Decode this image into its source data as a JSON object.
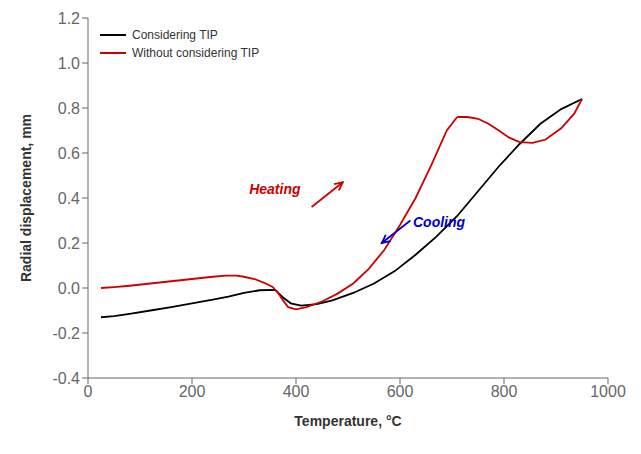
{
  "chart_data": {
    "type": "line",
    "x_label": "Temperature, °C",
    "y_label": "Radial displacement, mm",
    "xlim": [
      0,
      1000
    ],
    "ylim": [
      -0.4,
      1.2
    ],
    "xticks": [
      0,
      200,
      400,
      600,
      800,
      1000
    ],
    "yticks": [
      -0.4,
      -0.2,
      {
        "value": 0,
        "label": "0.0"
      },
      0.2,
      0.4,
      0.6,
      0.8,
      {
        "value": 1,
        "label": "1.0"
      },
      1.2
    ],
    "grid": false,
    "legend": "upper left",
    "series": [
      {
        "name": "Considering TIP",
        "color": "#000000",
        "x": [
          25,
          50,
          80,
          120,
          160,
          200,
          240,
          270,
          300,
          330,
          360,
          375,
          390,
          410,
          440,
          470,
          510,
          550,
          590,
          630,
          670,
          710,
          750,
          790,
          830,
          870,
          910,
          950
        ],
        "values": [
          -0.13,
          -0.125,
          -0.115,
          -0.1,
          -0.085,
          -0.068,
          -0.052,
          -0.038,
          -0.022,
          -0.01,
          -0.008,
          -0.042,
          -0.068,
          -0.078,
          -0.072,
          -0.055,
          -0.022,
          0.02,
          0.075,
          0.148,
          0.228,
          0.32,
          0.43,
          0.54,
          0.64,
          0.73,
          0.795,
          0.84
        ]
      },
      {
        "name": "Without considering TIP",
        "color": "#cc0000",
        "x": [
          25,
          50,
          80,
          120,
          160,
          200,
          240,
          265,
          285,
          300,
          320,
          340,
          355,
          365,
          375,
          385,
          400,
          420,
          450,
          480,
          510,
          540,
          570,
          600,
          630,
          660,
          690,
          710
        ],
        "values": [
          0.0,
          0.004,
          0.01,
          0.02,
          0.03,
          0.04,
          0.05,
          0.055,
          0.055,
          0.05,
          0.04,
          0.022,
          0.005,
          -0.02,
          -0.055,
          -0.085,
          -0.095,
          -0.085,
          -0.06,
          -0.025,
          0.02,
          0.085,
          0.17,
          0.28,
          0.4,
          0.545,
          0.7,
          0.76
        ]
      },
      {
        "color": "#cc0000",
        "x": [
          710,
          730,
          750,
          770,
          790,
          810,
          830,
          855,
          880,
          910,
          935,
          950
        ],
        "values": [
          0.76,
          0.76,
          0.752,
          0.73,
          0.7,
          0.668,
          0.648,
          0.645,
          0.66,
          0.71,
          0.775,
          0.84
        ]
      }
    ],
    "annotations": [
      {
        "text": "Heating",
        "x": 310,
        "y": 0.42,
        "color": "#cc0000",
        "arrow": {
          "x_start": 430,
          "y_start": 0.36,
          "x_end": 490,
          "y_end": 0.47,
          "color": "#cc0000"
        }
      },
      {
        "text": "Cooling",
        "x": 625,
        "y": 0.27,
        "color": "#0000cc",
        "arrow": {
          "x_start": 620,
          "y_start": 0.3,
          "x_end": 565,
          "y_end": 0.2,
          "color": "#0000cc"
        }
      }
    ]
  }
}
